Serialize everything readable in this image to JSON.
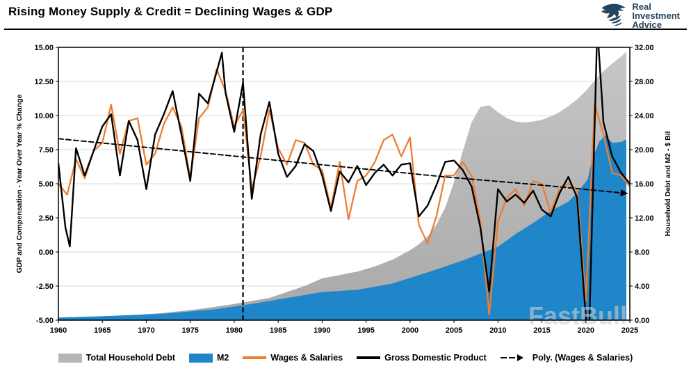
{
  "header": {
    "title": "Rising Money Supply & Credit = Declining Wages & GDP",
    "logo": {
      "line1": "Real",
      "line2": "Investment",
      "line3": "Advice"
    }
  },
  "chart_data": {
    "type": "combo",
    "title": "Rising Money Supply & Credit = Declining Wages & GDP",
    "watermark": "FastBull",
    "left_axis": {
      "title": "GDP and Compensation - Year Over Year % Change",
      "min": -5,
      "max": 15,
      "step": 2.5,
      "tick_labels": [
        "15.00",
        "12.50",
        "10.00",
        "7.50",
        "5.00",
        "2.50",
        "0.00",
        "-2.50",
        "-5.00"
      ]
    },
    "right_axis": {
      "title": "Household Debt and M2 - $ Bil",
      "min": 0,
      "max": 32,
      "step": 4,
      "tick_labels": [
        "32.00",
        "28.00",
        "24.00",
        "20.00",
        "16.00",
        "12.00",
        "8.00",
        "4.00",
        "0.00"
      ]
    },
    "x_axis": {
      "min": 1960,
      "max": 2025,
      "tick_labels": [
        "1960",
        "1965",
        "1970",
        "1975",
        "1980",
        "1985",
        "1990",
        "1995",
        "2000",
        "2005",
        "2010",
        "2015",
        "2020",
        "2025"
      ]
    },
    "annotations": {
      "vline_year": 1981
    },
    "series": [
      {
        "name": "Total Household Debt",
        "type": "area",
        "axis": "right",
        "color": "#b5b5b5",
        "points": [
          [
            1960,
            0.2
          ],
          [
            1964,
            0.38
          ],
          [
            1968,
            0.55
          ],
          [
            1972,
            0.85
          ],
          [
            1976,
            1.3
          ],
          [
            1980,
            1.9
          ],
          [
            1984,
            2.6
          ],
          [
            1988,
            4.0
          ],
          [
            1990,
            4.9
          ],
          [
            1992,
            5.3
          ],
          [
            1994,
            5.7
          ],
          [
            1996,
            6.3
          ],
          [
            1998,
            7.1
          ],
          [
            2000,
            8.2
          ],
          [
            2001,
            8.9
          ],
          [
            2002,
            9.8
          ],
          [
            2003,
            11.2
          ],
          [
            2004,
            13.2
          ],
          [
            2005,
            16.2
          ],
          [
            2006,
            19.8
          ],
          [
            2007,
            23.2
          ],
          [
            2008,
            25.0
          ],
          [
            2009,
            25.2
          ],
          [
            2010,
            24.4
          ],
          [
            2011,
            23.7
          ],
          [
            2012,
            23.3
          ],
          [
            2013,
            23.2
          ],
          [
            2014,
            23.3
          ],
          [
            2015,
            23.5
          ],
          [
            2016,
            23.9
          ],
          [
            2017,
            24.4
          ],
          [
            2018,
            25.1
          ],
          [
            2019,
            25.9
          ],
          [
            2020,
            26.9
          ],
          [
            2021,
            28.1
          ],
          [
            2022,
            29.2
          ],
          [
            2023,
            30.1
          ],
          [
            2024,
            30.9
          ],
          [
            2024.6,
            31.5
          ]
        ]
      },
      {
        "name": "M2",
        "type": "area",
        "axis": "right",
        "color": "#1f86c9",
        "points": [
          [
            1960,
            0.3
          ],
          [
            1966,
            0.5
          ],
          [
            1972,
            0.75
          ],
          [
            1978,
            1.3
          ],
          [
            1982,
            1.9
          ],
          [
            1986,
            2.6
          ],
          [
            1990,
            3.3
          ],
          [
            1994,
            3.55
          ],
          [
            1998,
            4.3
          ],
          [
            2002,
            5.6
          ],
          [
            2006,
            7.0
          ],
          [
            2008,
            7.8
          ],
          [
            2010,
            8.6
          ],
          [
            2012,
            10.1
          ],
          [
            2014,
            11.4
          ],
          [
            2016,
            12.8
          ],
          [
            2018,
            13.9
          ],
          [
            2019,
            14.9
          ],
          [
            2020.2,
            16.5
          ],
          [
            2020.7,
            18.8
          ],
          [
            2021.5,
            20.9
          ],
          [
            2022.2,
            21.7
          ],
          [
            2023,
            20.8
          ],
          [
            2024,
            20.9
          ],
          [
            2024.6,
            21.2
          ]
        ]
      },
      {
        "name": "Wages & Salaries",
        "type": "line",
        "axis": "left",
        "color": "#ED7D31",
        "width": 2.3,
        "points": [
          [
            1960,
            5.0
          ],
          [
            1961,
            4.2
          ],
          [
            1962,
            6.8
          ],
          [
            1963,
            5.4
          ],
          [
            1964,
            7.4
          ],
          [
            1965,
            8.0
          ],
          [
            1966,
            10.8
          ],
          [
            1967,
            7.2
          ],
          [
            1968,
            9.6
          ],
          [
            1969,
            9.8
          ],
          [
            1970,
            6.4
          ],
          [
            1971,
            7.2
          ],
          [
            1972,
            9.4
          ],
          [
            1973,
            10.6
          ],
          [
            1974,
            9.2
          ],
          [
            1975,
            5.4
          ],
          [
            1976,
            9.8
          ],
          [
            1977,
            10.6
          ],
          [
            1978,
            13.4
          ],
          [
            1979,
            11.8
          ],
          [
            1980,
            9.2
          ],
          [
            1981,
            10.4
          ],
          [
            1982,
            4.6
          ],
          [
            1983,
            7.0
          ],
          [
            1984,
            10.4
          ],
          [
            1985,
            7.6
          ],
          [
            1986,
            6.4
          ],
          [
            1987,
            8.2
          ],
          [
            1988,
            8.0
          ],
          [
            1989,
            6.4
          ],
          [
            1990,
            6.0
          ],
          [
            1991,
            3.2
          ],
          [
            1992,
            6.6
          ],
          [
            1993,
            2.4
          ],
          [
            1994,
            5.2
          ],
          [
            1995,
            5.6
          ],
          [
            1996,
            6.6
          ],
          [
            1997,
            8.2
          ],
          [
            1998,
            8.6
          ],
          [
            1999,
            7.0
          ],
          [
            2000,
            8.4
          ],
          [
            2001,
            2.0
          ],
          [
            2002,
            0.6
          ],
          [
            2003,
            2.6
          ],
          [
            2004,
            5.6
          ],
          [
            2005,
            5.6
          ],
          [
            2006,
            6.6
          ],
          [
            2007,
            5.6
          ],
          [
            2008,
            2.2
          ],
          [
            2009,
            -4.6
          ],
          [
            2010,
            2.2
          ],
          [
            2011,
            4.0
          ],
          [
            2012,
            4.6
          ],
          [
            2013,
            3.4
          ],
          [
            2014,
            5.2
          ],
          [
            2015,
            5.0
          ],
          [
            2016,
            2.9
          ],
          [
            2017,
            4.6
          ],
          [
            2018,
            5.0
          ],
          [
            2019,
            4.6
          ],
          [
            2020,
            -3.6
          ],
          [
            2021,
            10.8
          ],
          [
            2022,
            8.6
          ],
          [
            2023,
            5.8
          ],
          [
            2024,
            5.6
          ],
          [
            2025,
            4.8
          ]
        ]
      },
      {
        "name": "Gross Domestic Product",
        "type": "line",
        "axis": "left",
        "color": "#000000",
        "width": 2.4,
        "points": [
          [
            1960,
            6.5
          ],
          [
            1960.8,
            1.8
          ],
          [
            1961.3,
            0.4
          ],
          [
            1962,
            7.6
          ],
          [
            1963,
            5.6
          ],
          [
            1964,
            7.4
          ],
          [
            1965,
            9.2
          ],
          [
            1966,
            10.1
          ],
          [
            1967,
            5.6
          ],
          [
            1968,
            9.6
          ],
          [
            1969,
            8.2
          ],
          [
            1970,
            4.6
          ],
          [
            1971,
            8.6
          ],
          [
            1972,
            10.1
          ],
          [
            1973,
            11.8
          ],
          [
            1974,
            8.6
          ],
          [
            1975,
            5.2
          ],
          [
            1976,
            11.6
          ],
          [
            1977,
            10.9
          ],
          [
            1978,
            13.2
          ],
          [
            1978.6,
            14.6
          ],
          [
            1979,
            11.7
          ],
          [
            1980,
            8.8
          ],
          [
            1981,
            12.4
          ],
          [
            1982,
            3.9
          ],
          [
            1983,
            8.6
          ],
          [
            1984,
            11.0
          ],
          [
            1985,
            7.2
          ],
          [
            1986,
            5.5
          ],
          [
            1987,
            6.3
          ],
          [
            1988,
            7.9
          ],
          [
            1989,
            7.4
          ],
          [
            1990,
            5.6
          ],
          [
            1991,
            3.0
          ],
          [
            1992,
            5.9
          ],
          [
            1993,
            5.1
          ],
          [
            1994,
            6.3
          ],
          [
            1995,
            4.9
          ],
          [
            1996,
            5.8
          ],
          [
            1997,
            6.4
          ],
          [
            1998,
            5.6
          ],
          [
            1999,
            6.4
          ],
          [
            2000,
            6.5
          ],
          [
            2001,
            2.6
          ],
          [
            2002,
            3.4
          ],
          [
            2003,
            4.9
          ],
          [
            2004,
            6.6
          ],
          [
            2005,
            6.7
          ],
          [
            2006,
            6.0
          ],
          [
            2007,
            4.8
          ],
          [
            2008,
            1.8
          ],
          [
            2009,
            -2.9
          ],
          [
            2010,
            4.6
          ],
          [
            2011,
            3.7
          ],
          [
            2012,
            4.2
          ],
          [
            2013,
            3.6
          ],
          [
            2014,
            4.5
          ],
          [
            2015,
            3.1
          ],
          [
            2016,
            2.6
          ],
          [
            2017,
            4.3
          ],
          [
            2018,
            5.5
          ],
          [
            2019,
            4.0
          ],
          [
            2020.3,
            -7.5
          ],
          [
            2021.3,
            16.5
          ],
          [
            2022,
            9.5
          ],
          [
            2023,
            7.0
          ],
          [
            2024,
            5.8
          ],
          [
            2025,
            5.0
          ]
        ]
      },
      {
        "name": "Poly. (Wages & Salaries)",
        "type": "dashed-trend",
        "axis": "left",
        "color": "#000000",
        "width": 1.9,
        "points": [
          [
            1960,
            8.3
          ],
          [
            1971,
            7.6
          ],
          [
            1982,
            6.9
          ],
          [
            1993,
            6.2
          ],
          [
            2004,
            5.5
          ],
          [
            2015,
            4.9
          ],
          [
            2024.5,
            4.3
          ]
        ]
      }
    ],
    "legend": [
      {
        "label": "Total Household Debt",
        "swatch": "area",
        "color": "#b5b5b5"
      },
      {
        "label": "M2",
        "swatch": "area",
        "color": "#1f86c9"
      },
      {
        "label": "Wages & Salaries",
        "swatch": "line",
        "color": "#ED7D31"
      },
      {
        "label": "Gross Domestic Product",
        "swatch": "line",
        "color": "#000000"
      },
      {
        "label": "Poly. (Wages & Salaries)",
        "swatch": "dashed-arrow",
        "color": "#000000"
      }
    ]
  }
}
